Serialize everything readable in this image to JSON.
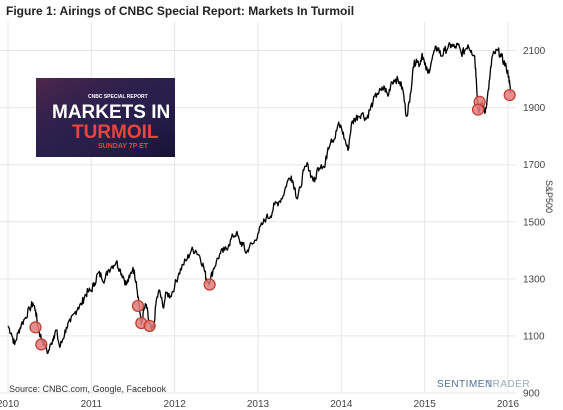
{
  "figure_title": "Figure 1: Airings of CNBC Special Report: Markets In Turmoil",
  "source_note": "Source: CNBC.com,  Google,  Facebook",
  "brand": {
    "part1": "SENTIMEN",
    "part2": "TRADER"
  },
  "inset": {
    "line1": "MARKETS IN",
    "line2": "TURMOIL",
    "line3": "SUNDAY 7P ET",
    "small": "CNBC SPECIAL REPORT"
  },
  "colors": {
    "line": "#000000",
    "marker_fill": "#e27b7b",
    "marker_stroke": "#c0392b",
    "grid": "#e6e6e6",
    "inset_bg": "#2a1f4a"
  },
  "chart_data": {
    "type": "line",
    "ylabel": "S&P500",
    "ylim": [
      900,
      2200
    ],
    "xlim": [
      2010.0,
      2016.18
    ],
    "x_ticks": [
      "2010",
      "2011",
      "2012",
      "2013",
      "2014",
      "2015",
      "2016"
    ],
    "y_ticks": [
      900,
      1100,
      1300,
      1500,
      1700,
      1900,
      2100
    ],
    "grid": true,
    "series": [
      {
        "name": "",
        "points": [
          [
            2010.0,
            1135
          ],
          [
            2010.04,
            1110
          ],
          [
            2010.08,
            1070
          ],
          [
            2010.12,
            1110
          ],
          [
            2010.16,
            1140
          ],
          [
            2010.21,
            1165
          ],
          [
            2010.26,
            1195
          ],
          [
            2010.3,
            1215
          ],
          [
            2010.33,
            1190
          ],
          [
            2010.36,
            1130
          ],
          [
            2010.4,
            1090
          ],
          [
            2010.44,
            1070
          ],
          [
            2010.48,
            1040
          ],
          [
            2010.52,
            1075
          ],
          [
            2010.55,
            1100
          ],
          [
            2010.58,
            1120
          ],
          [
            2010.62,
            1060
          ],
          [
            2010.66,
            1090
          ],
          [
            2010.7,
            1130
          ],
          [
            2010.75,
            1150
          ],
          [
            2010.8,
            1180
          ],
          [
            2010.84,
            1200
          ],
          [
            2010.88,
            1210
          ],
          [
            2010.92,
            1240
          ],
          [
            2010.96,
            1255
          ],
          [
            2011.0,
            1260
          ],
          [
            2011.04,
            1285
          ],
          [
            2011.08,
            1320
          ],
          [
            2011.12,
            1310
          ],
          [
            2011.16,
            1295
          ],
          [
            2011.2,
            1330
          ],
          [
            2011.25,
            1345
          ],
          [
            2011.3,
            1360
          ],
          [
            2011.34,
            1335
          ],
          [
            2011.38,
            1310
          ],
          [
            2011.42,
            1280
          ],
          [
            2011.46,
            1305
          ],
          [
            2011.5,
            1340
          ],
          [
            2011.54,
            1290
          ],
          [
            2011.57,
            1220
          ],
          [
            2011.6,
            1140
          ],
          [
            2011.63,
            1190
          ],
          [
            2011.66,
            1210
          ],
          [
            2011.69,
            1150
          ],
          [
            2011.72,
            1120
          ],
          [
            2011.75,
            1130
          ],
          [
            2011.78,
            1225
          ],
          [
            2011.82,
            1260
          ],
          [
            2011.86,
            1200
          ],
          [
            2011.9,
            1250
          ],
          [
            2011.95,
            1240
          ],
          [
            2012.0,
            1275
          ],
          [
            2012.05,
            1320
          ],
          [
            2012.1,
            1350
          ],
          [
            2012.15,
            1370
          ],
          [
            2012.2,
            1400
          ],
          [
            2012.25,
            1400
          ],
          [
            2012.3,
            1380
          ],
          [
            2012.35,
            1340
          ],
          [
            2012.38,
            1300
          ],
          [
            2012.42,
            1290
          ],
          [
            2012.46,
            1330
          ],
          [
            2012.5,
            1360
          ],
          [
            2012.55,
            1390
          ],
          [
            2012.6,
            1400
          ],
          [
            2012.65,
            1420
          ],
          [
            2012.7,
            1450
          ],
          [
            2012.74,
            1460
          ],
          [
            2012.78,
            1430
          ],
          [
            2012.82,
            1420
          ],
          [
            2012.86,
            1390
          ],
          [
            2012.9,
            1415
          ],
          [
            2012.95,
            1425
          ],
          [
            2013.0,
            1460
          ],
          [
            2013.05,
            1490
          ],
          [
            2013.1,
            1515
          ],
          [
            2013.15,
            1520
          ],
          [
            2013.2,
            1560
          ],
          [
            2013.25,
            1570
          ],
          [
            2013.3,
            1590
          ],
          [
            2013.35,
            1640
          ],
          [
            2013.4,
            1660
          ],
          [
            2013.44,
            1620
          ],
          [
            2013.47,
            1580
          ],
          [
            2013.51,
            1620
          ],
          [
            2013.55,
            1680
          ],
          [
            2013.6,
            1700
          ],
          [
            2013.64,
            1660
          ],
          [
            2013.68,
            1640
          ],
          [
            2013.72,
            1690
          ],
          [
            2013.76,
            1700
          ],
          [
            2013.8,
            1690
          ],
          [
            2013.84,
            1760
          ],
          [
            2013.88,
            1790
          ],
          [
            2013.92,
            1790
          ],
          [
            2013.96,
            1840
          ],
          [
            2014.0,
            1830
          ],
          [
            2014.04,
            1790
          ],
          [
            2014.08,
            1750
          ],
          [
            2014.12,
            1840
          ],
          [
            2014.16,
            1860
          ],
          [
            2014.2,
            1870
          ],
          [
            2014.25,
            1880
          ],
          [
            2014.3,
            1860
          ],
          [
            2014.34,
            1890
          ],
          [
            2014.38,
            1920
          ],
          [
            2014.43,
            1950
          ],
          [
            2014.48,
            1960
          ],
          [
            2014.52,
            1970
          ],
          [
            2014.56,
            1940
          ],
          [
            2014.6,
            1990
          ],
          [
            2014.65,
            2000
          ],
          [
            2014.7,
            1990
          ],
          [
            2014.74,
            1960
          ],
          [
            2014.78,
            1870
          ],
          [
            2014.82,
            1920
          ],
          [
            2014.86,
            2040
          ],
          [
            2014.9,
            2070
          ],
          [
            2014.94,
            2050
          ],
          [
            2014.97,
            2090
          ],
          [
            2015.0,
            2050
          ],
          [
            2015.04,
            2020
          ],
          [
            2015.08,
            2060
          ],
          [
            2015.12,
            2100
          ],
          [
            2015.16,
            2110
          ],
          [
            2015.2,
            2080
          ],
          [
            2015.24,
            2100
          ],
          [
            2015.28,
            2110
          ],
          [
            2015.32,
            2120
          ],
          [
            2015.36,
            2110
          ],
          [
            2015.4,
            2120
          ],
          [
            2015.44,
            2090
          ],
          [
            2015.48,
            2100
          ],
          [
            2015.52,
            2120
          ],
          [
            2015.56,
            2100
          ],
          [
            2015.6,
            2080
          ],
          [
            2015.62,
            2000
          ],
          [
            2015.64,
            1900
          ],
          [
            2015.66,
            1890
          ],
          [
            2015.69,
            1920
          ],
          [
            2015.72,
            1880
          ],
          [
            2015.75,
            1930
          ],
          [
            2015.78,
            2000
          ],
          [
            2015.81,
            2080
          ],
          [
            2015.84,
            2090
          ],
          [
            2015.88,
            2100
          ],
          [
            2015.92,
            2080
          ],
          [
            2015.95,
            2060
          ],
          [
            2015.98,
            2040
          ],
          [
            2016.01,
            2010
          ],
          [
            2016.03,
            1950
          ]
        ]
      }
    ],
    "markers": [
      {
        "x": 2010.33,
        "y": 1130
      },
      {
        "x": 2010.4,
        "y": 1070
      },
      {
        "x": 2011.56,
        "y": 1205
      },
      {
        "x": 2011.6,
        "y": 1145
      },
      {
        "x": 2011.7,
        "y": 1135
      },
      {
        "x": 2012.42,
        "y": 1280
      },
      {
        "x": 2015.66,
        "y": 1920
      },
      {
        "x": 2015.64,
        "y": 1893
      },
      {
        "x": 2016.02,
        "y": 1944
      }
    ]
  }
}
